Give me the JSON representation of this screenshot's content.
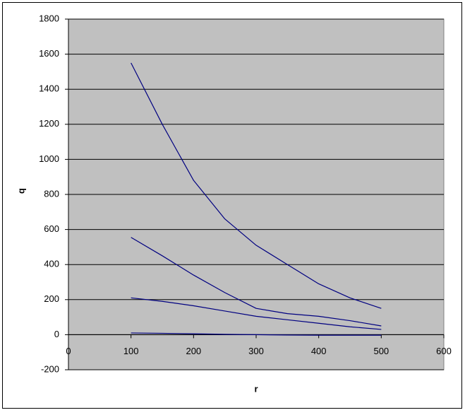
{
  "chart_data": {
    "type": "line",
    "x_label": "r",
    "y_label": "q",
    "x": [
      100,
      150,
      200,
      250,
      300,
      350,
      400,
      450,
      500
    ],
    "series": [
      {
        "color": "#000080",
        "values": [
          1550,
          1200,
          880,
          660,
          510,
          400,
          290,
          210,
          150
        ]
      },
      {
        "color": "#000080",
        "values": [
          555,
          450,
          340,
          240,
          150,
          120,
          105,
          80,
          50
        ]
      },
      {
        "color": "#000080",
        "values": [
          210,
          190,
          165,
          135,
          105,
          85,
          65,
          45,
          30
        ]
      },
      {
        "color": "#000080",
        "values": [
          10,
          8,
          5,
          2,
          0,
          -2,
          -3,
          -3,
          -3
        ]
      }
    ],
    "xlim": [
      0,
      600
    ],
    "xticks": [
      0,
      100,
      200,
      300,
      400,
      500,
      600
    ],
    "ylim": [
      -200,
      1800
    ],
    "yticks": [
      -200,
      0,
      200,
      400,
      600,
      800,
      1000,
      1200,
      1400,
      1600,
      1800
    ],
    "grid": true
  }
}
